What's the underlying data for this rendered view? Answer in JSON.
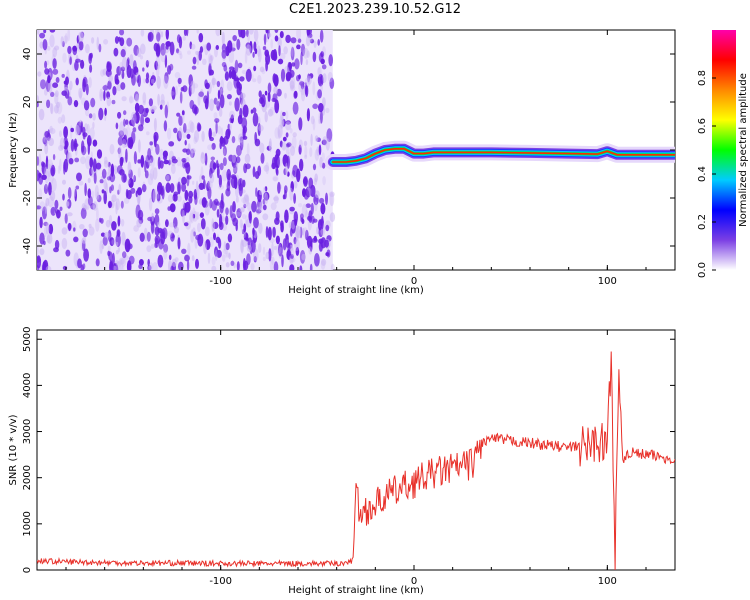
{
  "title": "C2E1.2023.239.10.52.G12",
  "chart_data": [
    {
      "type": "heatmap",
      "xlabel": "Height of straight line (km)",
      "ylabel": "Frequency (Hz)",
      "xlim": [
        -195,
        135
      ],
      "ylim": [
        -50,
        50
      ],
      "xticks": [
        -100,
        0,
        100
      ],
      "xtick_labels": [
        "-100",
        "0",
        "100"
      ],
      "yticks": [
        -40,
        -20,
        0,
        20,
        40
      ],
      "ytick_labels": [
        "-40",
        "-20",
        "0",
        "20",
        "40"
      ],
      "noise_region_x": [
        -195,
        -42
      ],
      "noise_color": "#6a1fe0",
      "signal_trace": {
        "x": [
          -42,
          -35,
          -30,
          -25,
          -20,
          -15,
          -10,
          -5,
          0,
          5,
          10,
          20,
          40,
          60,
          80,
          95,
          100,
          105,
          110,
          135
        ],
        "y": [
          -5,
          -5,
          -4.5,
          -3.5,
          -1.5,
          0,
          0.5,
          0.5,
          -1.5,
          -1.5,
          -1,
          -1,
          -1,
          -1.2,
          -1.5,
          -1.7,
          -0.5,
          -2,
          -2,
          -2
        ]
      },
      "colorbar": {
        "label": "Normalized spectral amplitude",
        "range": [
          0,
          1
        ],
        "ticks": [
          0.0,
          0.2,
          0.4,
          0.6,
          0.8
        ],
        "tick_labels": [
          "0.0",
          "0.2",
          "0.4",
          "0.6",
          "0.8"
        ],
        "colors": [
          "#ffffff",
          "#7b3fe4",
          "#0000ff",
          "#00ccff",
          "#00ff00",
          "#ffff00",
          "#ff8800",
          "#ff0000",
          "#ff00aa"
        ]
      }
    },
    {
      "type": "line",
      "xlabel": "Height of straight line (km)",
      "ylabel": "SNR (10 * v/v)",
      "xlim": [
        -195,
        135
      ],
      "ylim": [
        0,
        5200
      ],
      "xticks": [
        -100,
        0,
        100
      ],
      "xtick_labels": [
        "-100",
        "0",
        "100"
      ],
      "yticks": [
        0,
        1000,
        2000,
        3000,
        4000,
        5000
      ],
      "ytick_labels": [
        "0",
        "1000",
        "2000",
        "3000",
        "4000",
        "5000"
      ],
      "color": "#e8312a",
      "x": [
        -195,
        -180,
        -160,
        -140,
        -120,
        -100,
        -80,
        -60,
        -40,
        -32,
        -30,
        -28,
        -25,
        -20,
        -15,
        -10,
        -5,
        0,
        5,
        10,
        20,
        30,
        35,
        40,
        50,
        60,
        70,
        80,
        90,
        95,
        100,
        102,
        104,
        106,
        108,
        110,
        120,
        135
      ],
      "y": [
        200,
        180,
        160,
        150,
        150,
        140,
        140,
        140,
        140,
        180,
        1700,
        1200,
        1300,
        1400,
        1600,
        1700,
        1800,
        1900,
        2000,
        2100,
        2200,
        2300,
        2750,
        2850,
        2800,
        2750,
        2700,
        2650,
        2700,
        2800,
        2700,
        4700,
        400,
        3900,
        2600,
        2550,
        2500,
        2400
      ]
    }
  ]
}
